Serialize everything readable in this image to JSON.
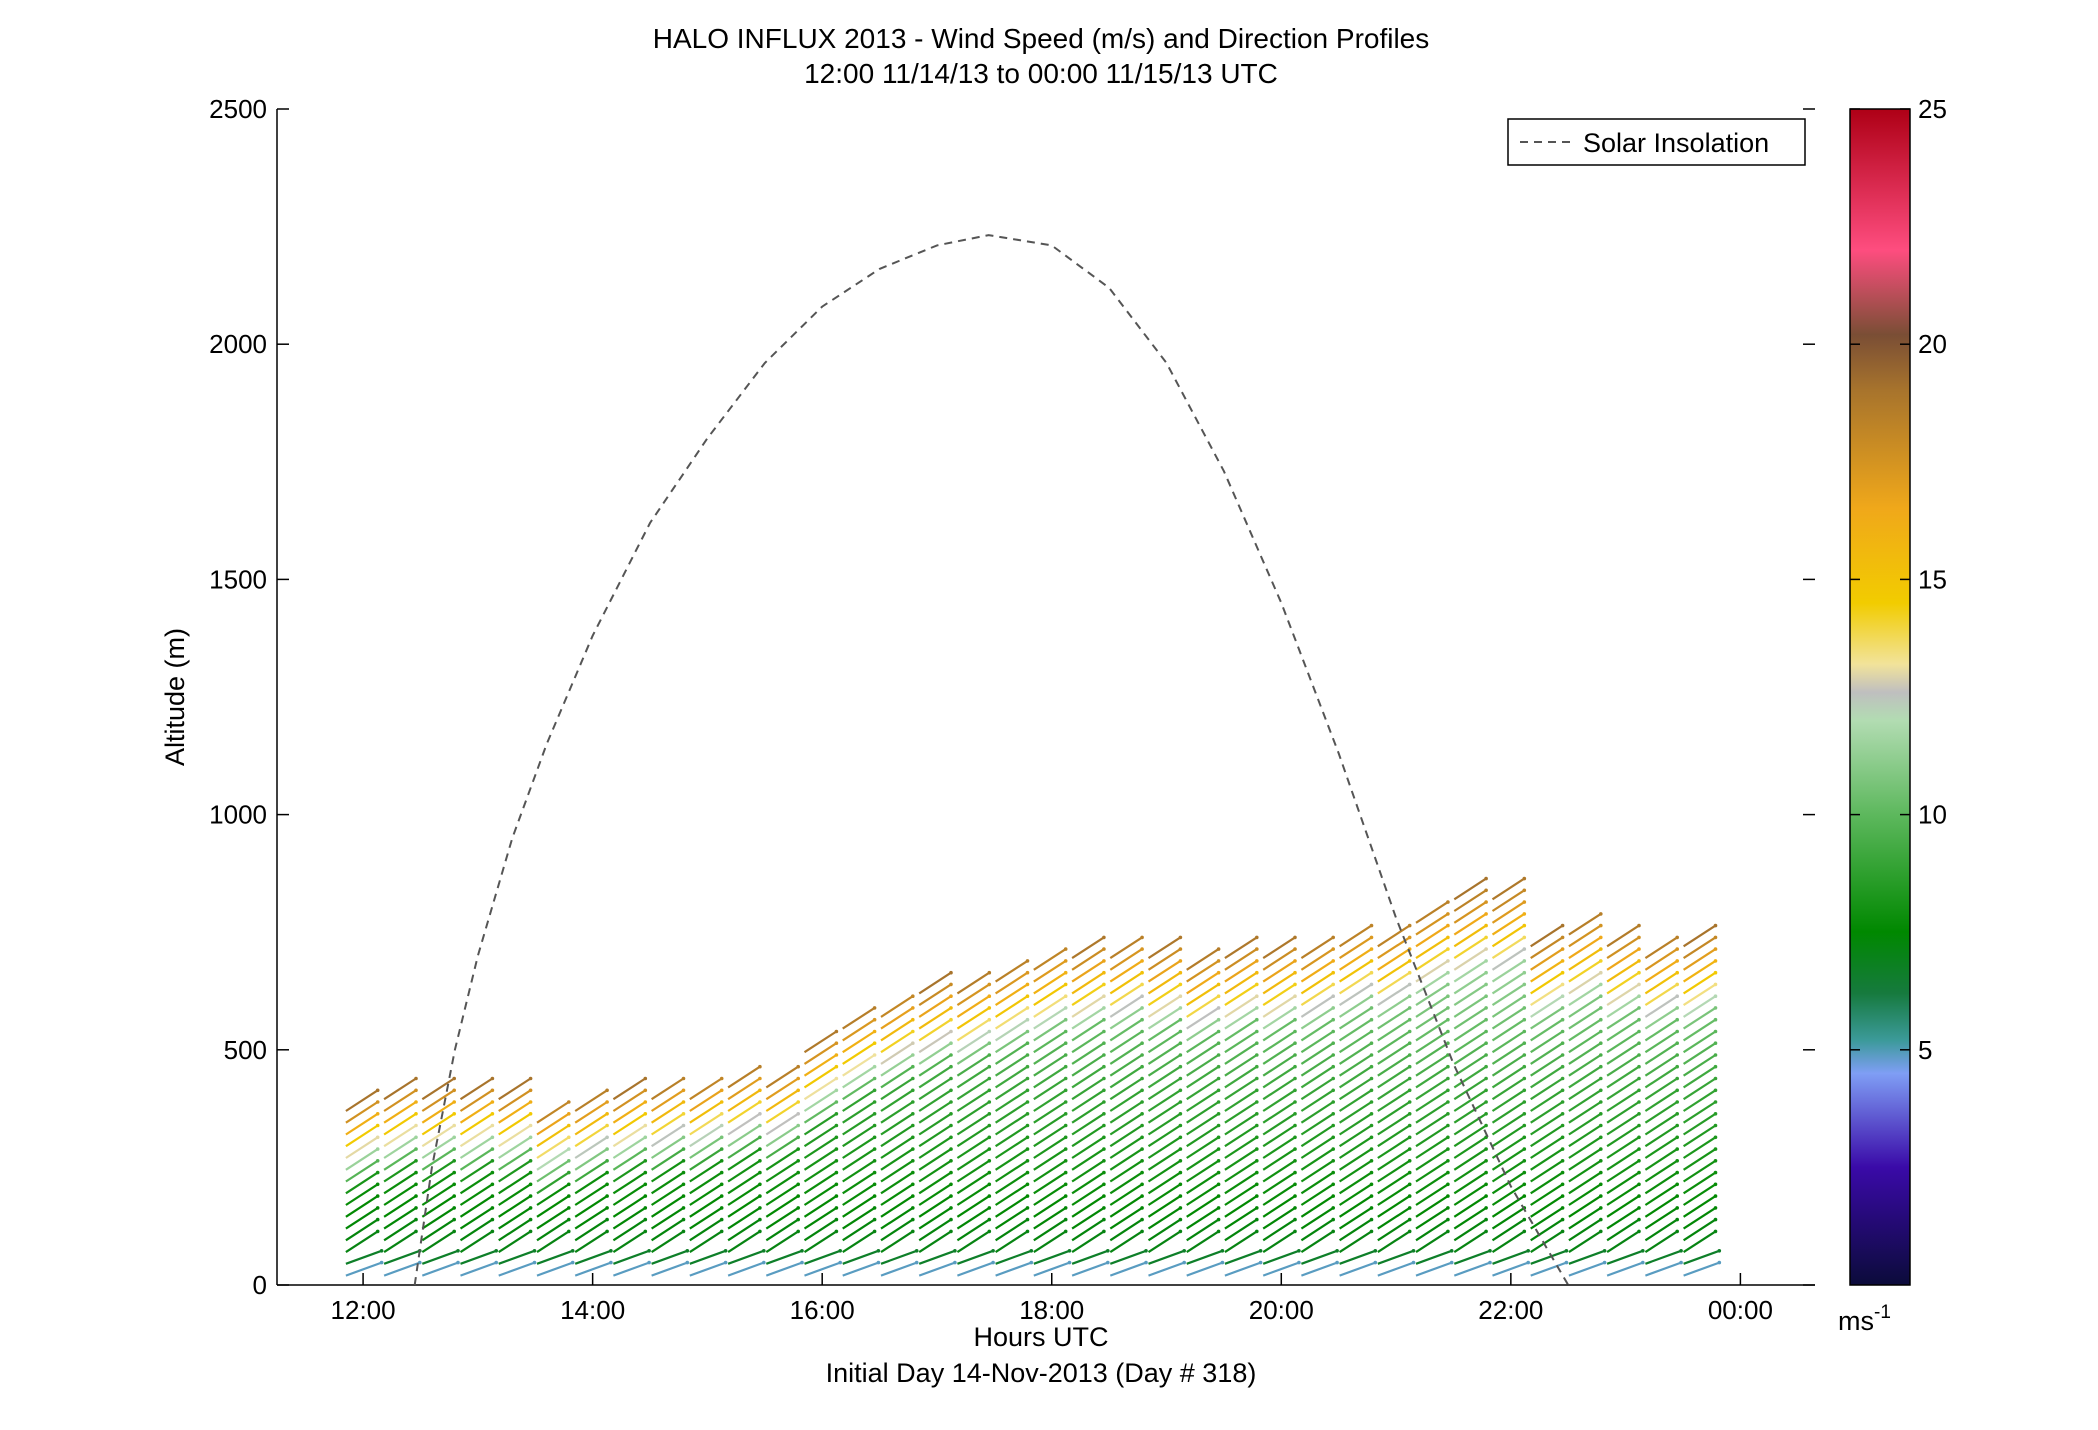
{
  "chart_data": {
    "type": "barb",
    "title": "HALO INFLUX 2013 - Wind Speed (m/s) and Direction Profiles",
    "subtitle": "12:00 11/14/13 to 00:00 11/15/13  UTC",
    "xlabel": "Hours UTC",
    "xlabel2": "Initial Day 14-Nov-2013 (Day # 318)",
    "ylabel": "Altitude (m)",
    "x_tick_labels": [
      "12:00",
      "14:00",
      "16:00",
      "18:00",
      "20:00",
      "22:00",
      "00:00"
    ],
    "x_tick_hours": [
      12,
      14,
      16,
      18,
      20,
      22,
      24
    ],
    "xlim_hours": [
      11.25,
      24.65
    ],
    "y_ticks": [
      0,
      500,
      1000,
      1500,
      2000,
      2500
    ],
    "ylim": [
      0,
      2500
    ],
    "legend": {
      "entries": [
        "Solar Insolation"
      ],
      "placement": "top-right"
    },
    "colorbar": {
      "ticks": [
        5,
        10,
        15,
        20,
        25
      ],
      "range": [
        0,
        25
      ],
      "unit_label": "ms",
      "unit_superscript": "-1",
      "colors": [
        {
          "v": 0,
          "c": "#0b0b3a"
        },
        {
          "v": 2.5,
          "c": "#3a0aa8"
        },
        {
          "v": 4.5,
          "c": "#7f9ef5"
        },
        {
          "v": 5.2,
          "c": "#3c9a9a"
        },
        {
          "v": 6.2,
          "c": "#167a3e"
        },
        {
          "v": 7.5,
          "c": "#008800"
        },
        {
          "v": 10,
          "c": "#5db85d"
        },
        {
          "v": 12,
          "c": "#b2dcb2"
        },
        {
          "v": 12.6,
          "c": "#bfbfbf"
        },
        {
          "v": 13.2,
          "c": "#f2e39a"
        },
        {
          "v": 14.5,
          "c": "#f2cc00"
        },
        {
          "v": 16.5,
          "c": "#f0a81a"
        },
        {
          "v": 19,
          "c": "#a8742c"
        },
        {
          "v": 20.2,
          "c": "#7a4e35"
        },
        {
          "v": 22,
          "c": "#fe4d7f"
        },
        {
          "v": 25,
          "c": "#ae0016"
        }
      ]
    },
    "solar_insolation": {
      "style": "dashed",
      "color": "#555555",
      "points": [
        [
          12.45,
          0
        ],
        [
          12.6,
          250
        ],
        [
          12.8,
          500
        ],
        [
          13.0,
          700
        ],
        [
          13.3,
          950
        ],
        [
          13.6,
          1150
        ],
        [
          14.0,
          1380
        ],
        [
          14.5,
          1620
        ],
        [
          15.0,
          1800
        ],
        [
          15.5,
          1960
        ],
        [
          16.0,
          2080
        ],
        [
          16.5,
          2160
        ],
        [
          17.0,
          2210
        ],
        [
          17.45,
          2232
        ],
        [
          18.0,
          2210
        ],
        [
          18.5,
          2120
        ],
        [
          19.0,
          1960
        ],
        [
          19.5,
          1730
        ],
        [
          20.0,
          1450
        ],
        [
          20.5,
          1130
        ],
        [
          21.0,
          780
        ],
        [
          21.5,
          470
        ],
        [
          22.0,
          210
        ],
        [
          22.5,
          0
        ]
      ]
    },
    "barb_columns": {
      "start_hour": 11.85,
      "step_hours": 0.333,
      "count": 36,
      "top_altitudes": [
        370,
        395,
        395,
        395,
        395,
        360,
        380,
        395,
        405,
        410,
        430,
        430,
        500,
        555,
        590,
        620,
        630,
        660,
        690,
        700,
        710,
        700,
        680,
        700,
        700,
        710,
        740,
        740,
        790,
        820,
        830,
        720,
        760,
        730,
        710,
        720
      ],
      "level_spacing_m": 25,
      "profile": [
        {
          "alt": 0,
          "speed": 3.5
        },
        {
          "alt": 50,
          "speed": 7
        },
        {
          "alt": 400,
          "speed": 9
        },
        {
          "alt": 700,
          "speed": 12
        },
        {
          "alt": 900,
          "speed": 16
        }
      ],
      "top_speed": 19,
      "direction_deg": 225
    }
  }
}
